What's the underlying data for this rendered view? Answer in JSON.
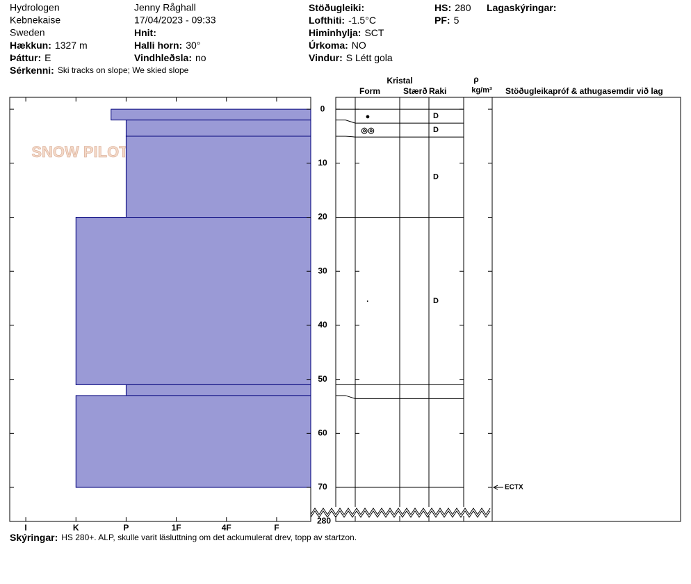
{
  "header": {
    "columns": [
      [
        "Hydrologen",
        "Kebnekaise",
        "Sweden",
        {
          "label": "Hækkun:",
          "value": "1327 m"
        },
        {
          "label": "Þáttur:",
          "value": "E"
        }
      ],
      [
        "Jenny Råghall",
        "17/04/2023 - 09:33",
        {
          "label": "Hnit:"
        },
        {
          "label": "Halli horn:",
          "value": "30°"
        },
        {
          "label": "Vindhleðsla:",
          "value": "no"
        }
      ],
      [
        {
          "label": "Stöðugleiki:"
        },
        {
          "label": "Lofthiti:",
          "value": "-1.5°C"
        },
        {
          "label": "Himinhylja:",
          "value": "SCT"
        },
        {
          "label": "Úrkoma:",
          "value": "NO"
        },
        {
          "label": "Vindur:",
          "value": "S Létt gola"
        }
      ],
      [
        {
          "label": "HS:",
          "value": "280"
        },
        {
          "label": "PF:",
          "value": "5"
        }
      ],
      [
        {
          "label": "Lagaskýringar:"
        }
      ]
    ],
    "remarks": {
      "label": "Sérkenni:",
      "value": "Ski tracks on slope; We skied slope"
    }
  },
  "logo": "SNOW PILOT",
  "profile": {
    "xlim": [
      6.32,
      0.32
    ],
    "xticks": [
      {
        "value": 6,
        "label": "I"
      },
      {
        "value": 5,
        "label": "K"
      },
      {
        "value": 4,
        "label": "P"
      },
      {
        "value": 3,
        "label": "1F"
      },
      {
        "value": 2,
        "label": "4F"
      },
      {
        "value": 1,
        "label": "F"
      }
    ],
    "ylim": [
      -2.2,
      76.3
    ],
    "yticks": [
      0,
      10,
      20,
      30,
      40,
      50,
      60,
      70
    ],
    "bottom_depth": 280,
    "layers": [
      {
        "top": 0,
        "bottom": 2,
        "hardness": 4.3,
        "grain_form": "●",
        "moisture": "D"
      },
      {
        "top": 2,
        "bottom": 5,
        "hardness": 4,
        "grain_form": "◎◎",
        "moisture": "D"
      },
      {
        "top": 5,
        "bottom": 20,
        "hardness": 4,
        "moisture": "D"
      },
      {
        "top": 20,
        "bottom": 51,
        "hardness": 5,
        "grain_form": "·",
        "moisture": "D"
      },
      {
        "top": 51,
        "bottom": 53,
        "hardness": 4
      },
      {
        "top": 53,
        "bottom": 70,
        "hardness": 5
      }
    ],
    "tests": [
      {
        "depth": 70,
        "label": "ECTX"
      }
    ]
  },
  "table": {
    "crystal": "Kristal",
    "form": "Form",
    "size": "Stærð",
    "moisture": "Raki",
    "rho": "ρ",
    "density_unit": "kg/m³",
    "comments": "Stöðugleikapróf & athugasemdir við lag"
  },
  "footer": {
    "label": "Skýringar:",
    "value": "HS 280+. ALP, skulle varit läsluttning om det ackumulerat drev, topp av startzon."
  }
}
